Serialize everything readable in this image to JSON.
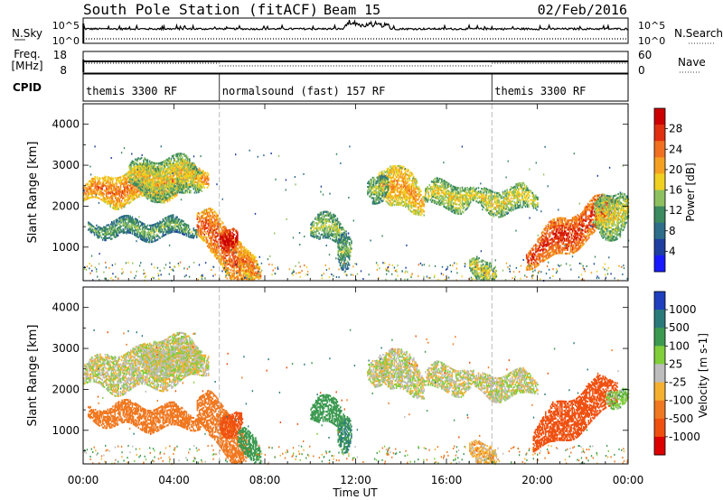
{
  "header": {
    "station": "South Pole Station (fitACF)",
    "beam": "Beam 15",
    "date": "02/Feb/2016"
  },
  "top_panels": {
    "left_labels": [
      "N.Sky",
      "Freq.",
      "[MHz]",
      "CPID"
    ],
    "nsky_ticks": [
      "10^5",
      "10^0"
    ],
    "freq_ticks": [
      "18",
      "8"
    ],
    "right_labels": [
      "N.Search",
      "Nave"
    ],
    "right_nsearch_ticks": [
      "10^5",
      "10^0"
    ],
    "right_nave_ticks": [
      "60",
      "0"
    ],
    "cpid_segments": [
      {
        "label": "themis 3300 RF",
        "start_hour": 0,
        "end_hour": 6
      },
      {
        "label": "normalsound (fast) 157 RF",
        "start_hour": 6,
        "end_hour": 18
      },
      {
        "label": "themis 3300 RF",
        "start_hour": 18,
        "end_hour": 24
      }
    ]
  },
  "x_axis": {
    "label": "Time UT",
    "ticks": [
      "00:00",
      "04:00",
      "08:00",
      "12:00",
      "16:00",
      "20:00",
      "00:00"
    ],
    "range_hours": [
      0,
      24
    ]
  },
  "chart_data": [
    {
      "type": "heatmap",
      "panel": "power",
      "ylabel": "Slant Range [km]",
      "ylim": [
        180,
        4500
      ],
      "yticks": [
        1000,
        2000,
        3000,
        4000
      ],
      "colorbar_label": "Power [dB]",
      "colorbar_ticks": [
        "4",
        "8",
        "12",
        "16",
        "20",
        "24",
        "28"
      ],
      "colorbar_range": [
        0,
        32
      ],
      "colors": [
        "#1a1aff",
        "#1f3fa0",
        "#2e6e8a",
        "#3c8a60",
        "#8fc060",
        "#f0d020",
        "#f5a020",
        "#f07020",
        "#e03010",
        "#cc0000"
      ],
      "regions": [
        {
          "t0": 0.0,
          "t1": 5.5,
          "r_center": 2300,
          "r_width": 350,
          "slope": 80,
          "value": 18
        },
        {
          "t0": 2.0,
          "t1": 5.2,
          "r_center": 2700,
          "r_width": 450,
          "slope": 0,
          "value": 12
        },
        {
          "t0": 0.2,
          "t1": 5.0,
          "r_center": 1450,
          "r_width": 200,
          "slope": 0,
          "value": 8
        },
        {
          "t0": 5.0,
          "t1": 7.5,
          "r_center": 1600,
          "r_width": 500,
          "slope": -500,
          "value": 20
        },
        {
          "t0": 6.0,
          "t1": 6.8,
          "r_center": 1250,
          "r_width": 250,
          "slope": 0,
          "value": 26
        },
        {
          "t0": 6.8,
          "t1": 7.8,
          "r_center": 600,
          "r_width": 300,
          "slope": -200,
          "value": 18
        },
        {
          "t0": 10.0,
          "t1": 11.5,
          "r_center": 1500,
          "r_width": 300,
          "slope": -100,
          "value": 10
        },
        {
          "t0": 11.2,
          "t1": 11.8,
          "r_center": 1000,
          "r_width": 400,
          "slope": 0,
          "value": 8
        },
        {
          "t0": 13.0,
          "t1": 15.0,
          "r_center": 2700,
          "r_width": 450,
          "slope": -300,
          "value": 16
        },
        {
          "t0": 12.5,
          "t1": 13.4,
          "r_center": 2500,
          "r_width": 300,
          "slope": 0,
          "value": 10
        },
        {
          "t0": 15.0,
          "t1": 17.2,
          "r_center": 2250,
          "r_width": 300,
          "slope": 0,
          "value": 12
        },
        {
          "t0": 17.2,
          "t1": 20.0,
          "r_center": 2150,
          "r_width": 280,
          "slope": 0,
          "value": 12
        },
        {
          "t0": 17.0,
          "t1": 18.2,
          "r_center": 450,
          "r_width": 250,
          "slope": 0,
          "value": 12
        },
        {
          "t0": 19.5,
          "t1": 23.5,
          "r_center": 750,
          "r_width": 400,
          "slope": 320,
          "value": 22
        },
        {
          "t0": 22.5,
          "t1": 24.0,
          "r_center": 1700,
          "r_width": 500,
          "slope": 150,
          "value": 12
        }
      ]
    },
    {
      "type": "heatmap",
      "panel": "velocity",
      "ylabel": "Slant Range [km]",
      "ylim": [
        180,
        4500
      ],
      "yticks": [
        1000,
        2000,
        3000,
        4000
      ],
      "colorbar_label": "Velocity [m s-1]",
      "colorbar_ticks": [
        "1000",
        "500",
        "100",
        "25",
        "-25",
        "-100",
        "-500",
        "-1000"
      ],
      "colorbar_range": [
        -1200,
        1200
      ],
      "colors": [
        "#1f3fbf",
        "#2b7a7a",
        "#3c9a50",
        "#7fce3a",
        "#bdbdbd",
        "#f5b030",
        "#f07820",
        "#ef5010",
        "#dd0000"
      ],
      "regions": [
        {
          "t0": 0.0,
          "t1": 5.5,
          "r_center": 2350,
          "r_width": 450,
          "slope": 60,
          "value": 0
        },
        {
          "t0": 2.5,
          "t1": 5.2,
          "r_center": 2800,
          "r_width": 450,
          "slope": 0,
          "value": 0
        },
        {
          "t0": 0.2,
          "t1": 5.2,
          "r_center": 1400,
          "r_width": 250,
          "slope": -30,
          "value": -300
        },
        {
          "t0": 5.0,
          "t1": 7.2,
          "r_center": 1550,
          "r_width": 500,
          "slope": -450,
          "value": -200
        },
        {
          "t0": 6.0,
          "t1": 7.0,
          "r_center": 1200,
          "r_width": 250,
          "slope": 0,
          "value": -800
        },
        {
          "t0": 6.8,
          "t1": 7.8,
          "r_center": 700,
          "r_width": 300,
          "slope": -250,
          "value": 200
        },
        {
          "t0": 10.0,
          "t1": 11.5,
          "r_center": 1500,
          "r_width": 300,
          "slope": -100,
          "value": 400
        },
        {
          "t0": 11.2,
          "t1": 11.8,
          "r_center": 1000,
          "r_width": 400,
          "slope": 0,
          "value": 500
        },
        {
          "t0": 13.0,
          "t1": 15.0,
          "r_center": 2700,
          "r_width": 450,
          "slope": -300,
          "value": 0
        },
        {
          "t0": 12.5,
          "t1": 13.4,
          "r_center": 2500,
          "r_width": 300,
          "slope": 0,
          "value": 0
        },
        {
          "t0": 15.0,
          "t1": 17.2,
          "r_center": 2250,
          "r_width": 300,
          "slope": 0,
          "value": 0
        },
        {
          "t0": 17.2,
          "t1": 20.0,
          "r_center": 2100,
          "r_width": 280,
          "slope": 0,
          "value": 0
        },
        {
          "t0": 17.0,
          "t1": 18.2,
          "r_center": 450,
          "r_width": 250,
          "slope": 0,
          "value": -60
        },
        {
          "t0": 19.8,
          "t1": 23.5,
          "r_center": 800,
          "r_width": 450,
          "slope": 330,
          "value": -700
        },
        {
          "t0": 23.0,
          "t1": 24.0,
          "r_center": 1850,
          "r_width": 200,
          "slope": 0,
          "value": 60
        }
      ]
    }
  ]
}
